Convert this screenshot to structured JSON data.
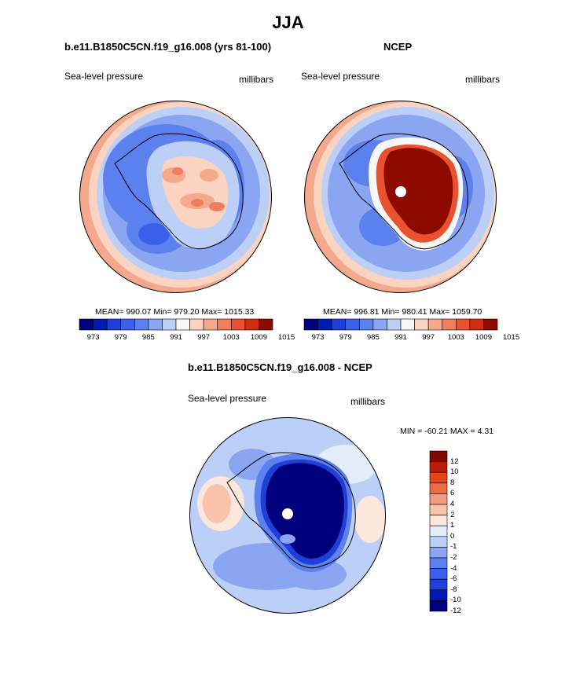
{
  "title": "JJA",
  "panels": {
    "model": {
      "title": "b.e11.B1850C5CN.f19_g16.008 (yrs 81-100)",
      "left_label": "Sea-level pressure",
      "right_label": "millibars",
      "stats": "MEAN= 990.07  Min= 979.20  Max= 1015.33"
    },
    "obs": {
      "title": "NCEP",
      "left_label": "Sea-level pressure",
      "right_label": "millibars",
      "stats": "MEAN= 996.81  Min= 980.41  Max= 1059.70"
    },
    "diff": {
      "title": "b.e11.B1850C5CN.f19_g16.008 - NCEP",
      "left_label": "Sea-level pressure",
      "right_label": "millibars",
      "stats": "MIN = -60.21 MAX =   4.31"
    }
  },
  "colorbar_abs": {
    "colors": [
      "#00007f",
      "#0019b3",
      "#1f3fd6",
      "#3b5fe6",
      "#5c80ee",
      "#8aa6f2",
      "#bcd0f7",
      "#f7f7f7",
      "#fbd3c1",
      "#f5a98c",
      "#f07d5c",
      "#e8522f",
      "#cf2e11",
      "#8c0a00"
    ],
    "tick_labels": [
      "973",
      "979",
      "985",
      "991",
      "997",
      "1003",
      "1009",
      "1015"
    ]
  },
  "colorbar_diff": {
    "colors": [
      "#00007f",
      "#0019b3",
      "#1f3fd6",
      "#3b5fe6",
      "#5c80ee",
      "#8aa6f2",
      "#bcd0f7",
      "#e4eefb",
      "#fce7dc",
      "#f9c2ab",
      "#f59a7a",
      "#ef6a43",
      "#e4431c",
      "#b81e05",
      "#7f0a00"
    ],
    "tick_labels": [
      "12",
      "10",
      "8",
      "6",
      "4",
      "2",
      "1",
      "0",
      "-1",
      "-2",
      "-4",
      "-6",
      "-8",
      "-10",
      "-12"
    ]
  },
  "chart_data": [
    {
      "type": "heatmap",
      "title": "b.e11.B1850C5CN.f19_g16.008 (yrs 81-100)",
      "variable": "Sea-level pressure",
      "units": "millibars",
      "season": "JJA",
      "projection": "south polar stereographic",
      "stats": {
        "mean": 990.07,
        "min": 979.2,
        "max": 1015.33
      },
      "contour_levels": [
        973,
        979,
        985,
        991,
        997,
        1003,
        1009,
        1015
      ]
    },
    {
      "type": "heatmap",
      "title": "NCEP",
      "variable": "Sea-level pressure",
      "units": "millibars",
      "season": "JJA",
      "projection": "south polar stereographic",
      "stats": {
        "mean": 996.81,
        "min": 980.41,
        "max": 1059.7
      },
      "contour_levels": [
        973,
        979,
        985,
        991,
        997,
        1003,
        1009,
        1015
      ]
    },
    {
      "type": "heatmap",
      "title": "b.e11.B1850C5CN.f19_g16.008 - NCEP",
      "variable": "Sea-level pressure",
      "units": "millibars",
      "season": "JJA",
      "projection": "south polar stereographic",
      "stats": {
        "min": -60.21,
        "max": 4.31
      },
      "contour_levels": [
        -12,
        -10,
        -8,
        -6,
        -4,
        -2,
        -1,
        0,
        1,
        2,
        4,
        6,
        8,
        10,
        12
      ]
    }
  ]
}
